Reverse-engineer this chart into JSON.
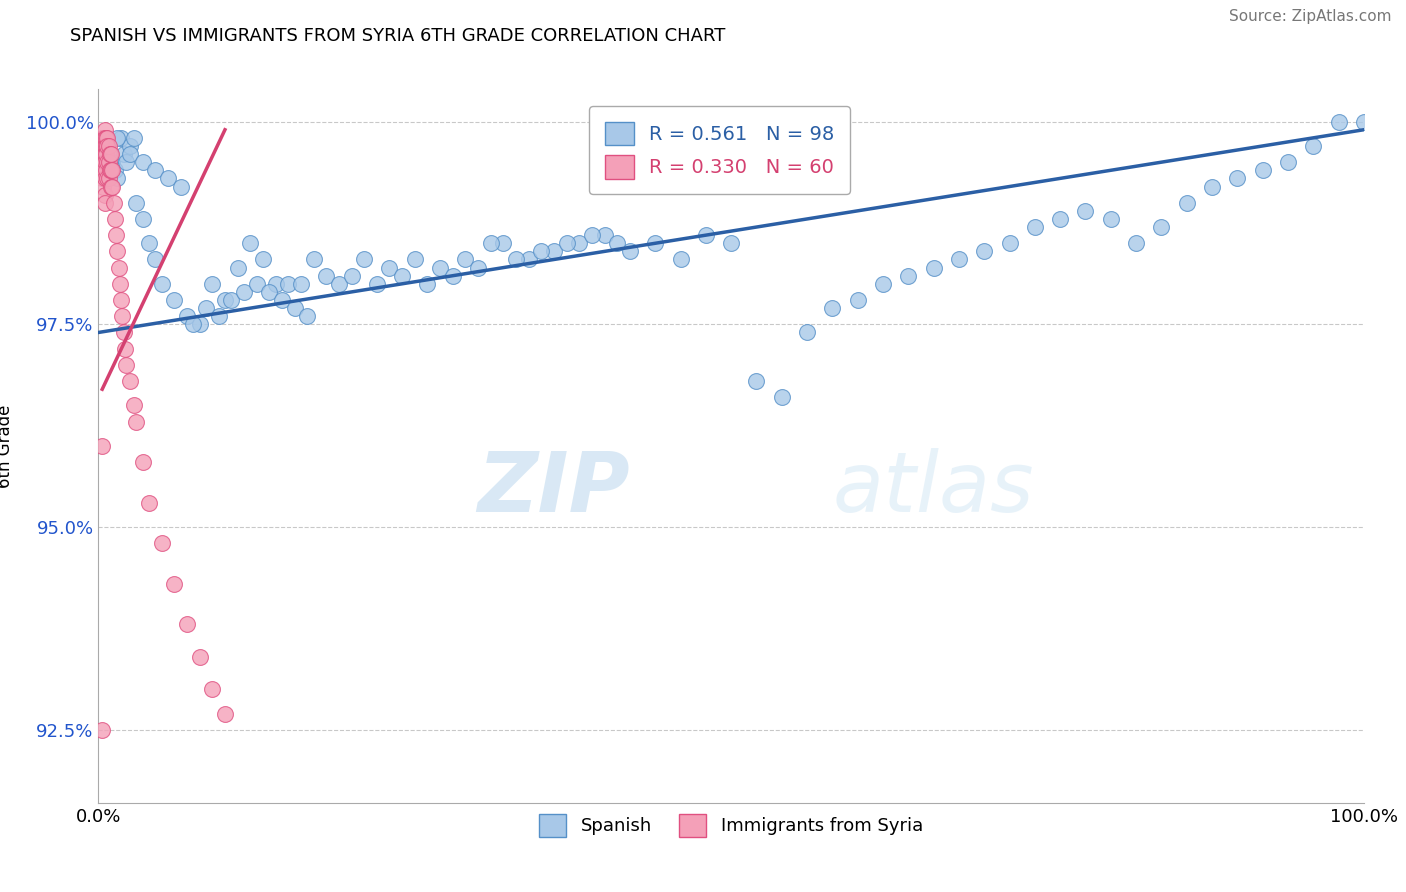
{
  "title": "SPANISH VS IMMIGRANTS FROM SYRIA 6TH GRADE CORRELATION CHART",
  "source_text": "Source: ZipAtlas.com",
  "ylabel": "6th Grade",
  "watermark_zip": "ZIP",
  "watermark_atlas": "atlas",
  "x_min": 0.0,
  "x_max": 1.0,
  "y_min": 0.916,
  "y_max": 1.004,
  "y_ticks": [
    0.925,
    0.95,
    0.975,
    1.0
  ],
  "y_tick_labels": [
    "92.5%",
    "95.0%",
    "97.5%",
    "100.0%"
  ],
  "x_ticks": [
    0.0,
    0.25,
    0.5,
    0.75,
    1.0
  ],
  "x_tick_labels": [
    "0.0%",
    "",
    "",
    "",
    "100.0%"
  ],
  "blue_R": 0.561,
  "blue_N": 98,
  "pink_R": 0.33,
  "pink_N": 60,
  "blue_color": "#a8c8e8",
  "blue_edge_color": "#5590c8",
  "blue_line_color": "#2b5fa5",
  "pink_color": "#f4a0b8",
  "pink_edge_color": "#e05080",
  "pink_line_color": "#d44070",
  "legend_label_blue": "Spanish",
  "legend_label_pink": "Immigrants from Syria",
  "blue_scatter_x": [
    0.005,
    0.007,
    0.009,
    0.011,
    0.013,
    0.015,
    0.018,
    0.02,
    0.022,
    0.025,
    0.028,
    0.03,
    0.035,
    0.04,
    0.045,
    0.05,
    0.06,
    0.07,
    0.08,
    0.09,
    0.1,
    0.11,
    0.12,
    0.13,
    0.14,
    0.15,
    0.16,
    0.17,
    0.18,
    0.19,
    0.2,
    0.21,
    0.22,
    0.23,
    0.24,
    0.25,
    0.26,
    0.27,
    0.28,
    0.29,
    0.3,
    0.32,
    0.34,
    0.36,
    0.38,
    0.4,
    0.42,
    0.44,
    0.46,
    0.48,
    0.5,
    0.52,
    0.54,
    0.56,
    0.58,
    0.6,
    0.62,
    0.64,
    0.66,
    0.68,
    0.7,
    0.72,
    0.74,
    0.76,
    0.78,
    0.8,
    0.82,
    0.84,
    0.86,
    0.88,
    0.9,
    0.92,
    0.94,
    0.96,
    0.98,
    1.0,
    0.015,
    0.025,
    0.035,
    0.045,
    0.055,
    0.065,
    0.075,
    0.085,
    0.095,
    0.105,
    0.115,
    0.125,
    0.135,
    0.145,
    0.155,
    0.165,
    0.31,
    0.33,
    0.35,
    0.37,
    0.39,
    0.41
  ],
  "blue_scatter_y": [
    0.998,
    0.997,
    0.996,
    0.995,
    0.994,
    0.993,
    0.998,
    0.996,
    0.995,
    0.997,
    0.998,
    0.99,
    0.988,
    0.985,
    0.983,
    0.98,
    0.978,
    0.976,
    0.975,
    0.98,
    0.978,
    0.982,
    0.985,
    0.983,
    0.98,
    0.98,
    0.98,
    0.983,
    0.981,
    0.98,
    0.981,
    0.983,
    0.98,
    0.982,
    0.981,
    0.983,
    0.98,
    0.982,
    0.981,
    0.983,
    0.982,
    0.985,
    0.983,
    0.984,
    0.985,
    0.986,
    0.984,
    0.985,
    0.983,
    0.986,
    0.985,
    0.968,
    0.966,
    0.974,
    0.977,
    0.978,
    0.98,
    0.981,
    0.982,
    0.983,
    0.984,
    0.985,
    0.987,
    0.988,
    0.989,
    0.988,
    0.985,
    0.987,
    0.99,
    0.992,
    0.993,
    0.994,
    0.995,
    0.997,
    1.0,
    1.0,
    0.998,
    0.996,
    0.995,
    0.994,
    0.993,
    0.992,
    0.975,
    0.977,
    0.976,
    0.978,
    0.979,
    0.98,
    0.979,
    0.978,
    0.977,
    0.976,
    0.985,
    0.983,
    0.984,
    0.985,
    0.986,
    0.985
  ],
  "pink_scatter_x": [
    0.003,
    0.003,
    0.003,
    0.003,
    0.003,
    0.004,
    0.004,
    0.004,
    0.004,
    0.004,
    0.005,
    0.005,
    0.005,
    0.005,
    0.005,
    0.005,
    0.005,
    0.005,
    0.006,
    0.006,
    0.006,
    0.006,
    0.007,
    0.007,
    0.007,
    0.007,
    0.008,
    0.008,
    0.008,
    0.009,
    0.009,
    0.01,
    0.01,
    0.01,
    0.011,
    0.011,
    0.012,
    0.013,
    0.014,
    0.015,
    0.016,
    0.017,
    0.018,
    0.019,
    0.02,
    0.021,
    0.022,
    0.025,
    0.028,
    0.03,
    0.035,
    0.04,
    0.05,
    0.06,
    0.07,
    0.08,
    0.09,
    0.1,
    0.003,
    0.003
  ],
  "pink_scatter_y": [
    0.998,
    0.997,
    0.996,
    0.995,
    0.993,
    0.998,
    0.997,
    0.996,
    0.994,
    0.992,
    0.999,
    0.998,
    0.997,
    0.996,
    0.995,
    0.993,
    0.991,
    0.99,
    0.998,
    0.997,
    0.996,
    0.994,
    0.998,
    0.997,
    0.995,
    0.993,
    0.997,
    0.995,
    0.993,
    0.996,
    0.994,
    0.996,
    0.994,
    0.992,
    0.994,
    0.992,
    0.99,
    0.988,
    0.986,
    0.984,
    0.982,
    0.98,
    0.978,
    0.976,
    0.974,
    0.972,
    0.97,
    0.968,
    0.965,
    0.963,
    0.958,
    0.953,
    0.948,
    0.943,
    0.938,
    0.934,
    0.93,
    0.927,
    0.96,
    0.925
  ],
  "blue_trend_x": [
    0.0,
    1.0
  ],
  "blue_trend_y": [
    0.974,
    0.999
  ],
  "pink_trend_x": [
    0.003,
    0.1
  ],
  "pink_trend_y": [
    0.967,
    0.999
  ]
}
